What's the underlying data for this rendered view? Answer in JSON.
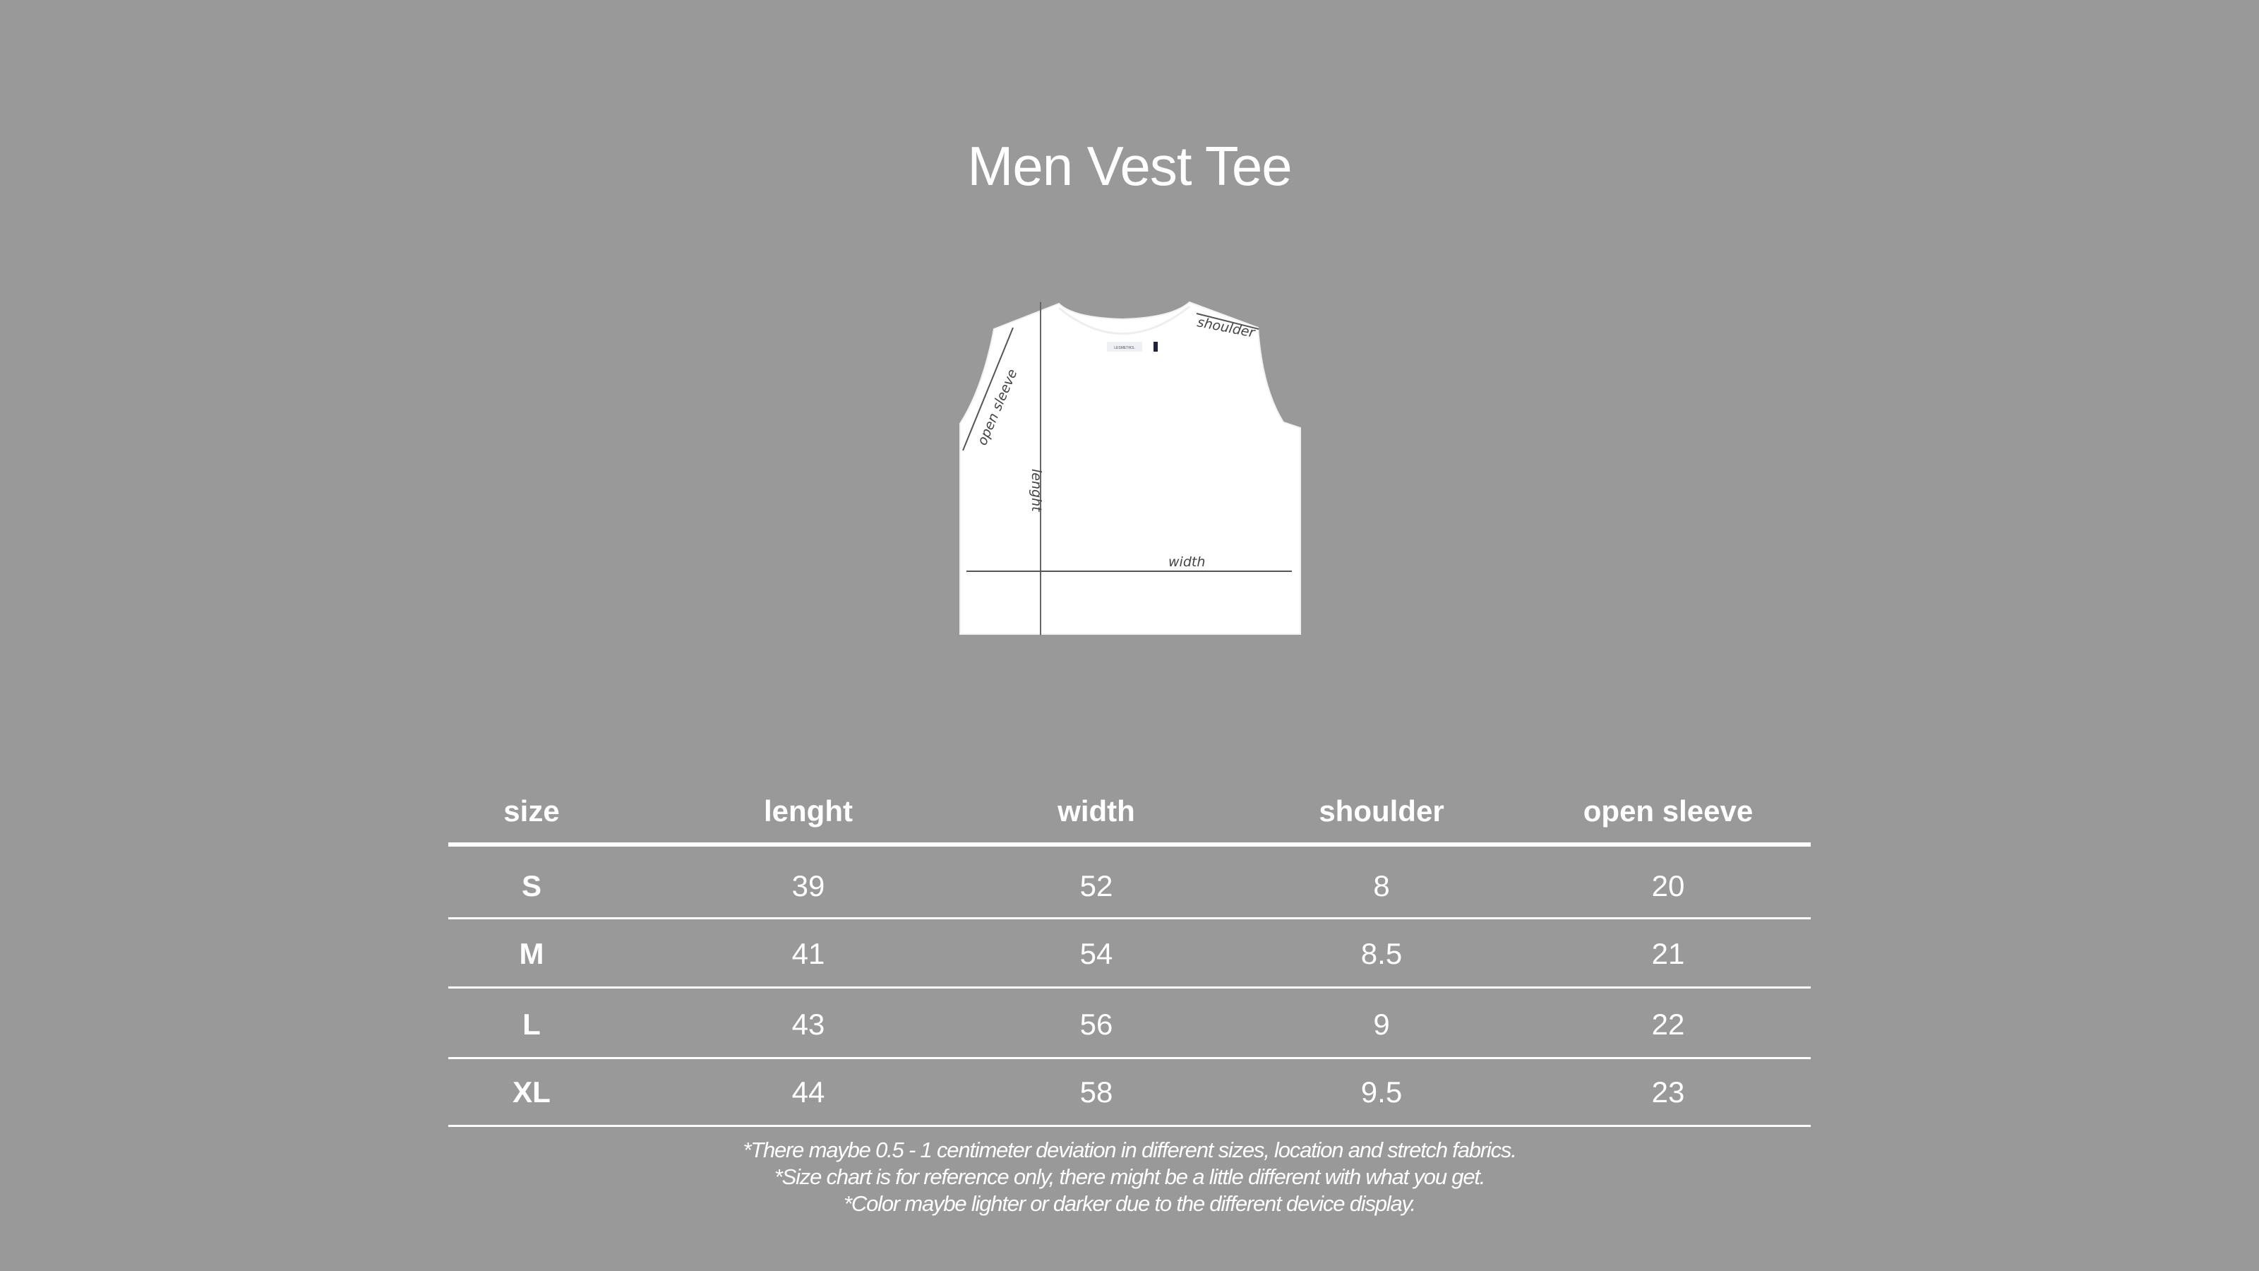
{
  "title": "Men Vest Tee",
  "diagram": {
    "labels": {
      "shoulder": "shoulder",
      "open_sleeve": "open sleeve",
      "length": "lenght",
      "width": "width"
    },
    "brand_tag": "LESMETIKS."
  },
  "table": {
    "headers": [
      "size",
      "lenght",
      "width",
      "shoulder",
      "open sleeve"
    ],
    "rows": [
      [
        "S",
        "39",
        "52",
        "8",
        "20"
      ],
      [
        "M",
        "41",
        "54",
        "8.5",
        "21"
      ],
      [
        "L",
        "43",
        "56",
        "9",
        "22"
      ],
      [
        "XL",
        "44",
        "58",
        "9.5",
        "23"
      ]
    ]
  },
  "notes": [
    "*There maybe 0.5 - 1 centimeter deviation in different sizes, location and stretch fabrics.",
    "*Size chart is for reference only, there might be a little different with what you get.",
    "*Color maybe lighter or darker due to the different device display."
  ],
  "colors": {
    "background": "#999999",
    "text": "#ffffff",
    "garment": "#ffffff"
  }
}
